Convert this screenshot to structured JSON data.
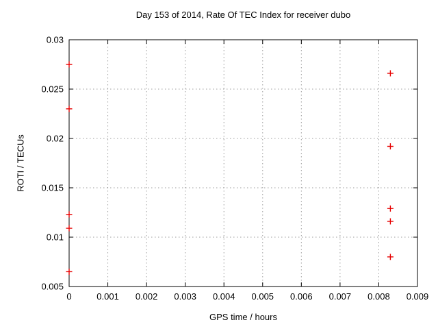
{
  "chart_data": {
    "type": "scatter",
    "title": "Day 153 of 2014, Rate Of TEC Index for receiver dubo",
    "xlabel": "GPS time / hours",
    "ylabel": "ROTI / TECUs",
    "xlim": [
      0,
      0.009
    ],
    "ylim": [
      0.005,
      0.03
    ],
    "x_tick_values": [
      0,
      0.001,
      0.002,
      0.003,
      0.004,
      0.005,
      0.006,
      0.007,
      0.008,
      0.009
    ],
    "x_tick_labels": [
      "0",
      "0.001",
      "0.002",
      "0.003",
      "0.004",
      "0.005",
      "0.006",
      "0.007",
      "0.008",
      "0.009"
    ],
    "y_tick_values": [
      0.005,
      0.01,
      0.015,
      0.02,
      0.025,
      0.03
    ],
    "y_tick_labels": [
      "0.005",
      "0.01",
      "0.015",
      "0.02",
      "0.025",
      "0.03"
    ],
    "grid": "dotted-both-axes",
    "legend_position": "none",
    "series": [
      {
        "name": "ROTI",
        "marker": "plus",
        "color": "#e60000",
        "points": [
          [
            0,
            0.0275
          ],
          [
            0,
            0.023
          ],
          [
            0,
            0.0123
          ],
          [
            0,
            0.0109
          ],
          [
            0,
            0.0065
          ],
          [
            0.0083,
            0.0266
          ],
          [
            0.0083,
            0.0192
          ],
          [
            0.0083,
            0.0129
          ],
          [
            0.0083,
            0.0116
          ],
          [
            0.0083,
            0.008
          ]
        ]
      }
    ]
  },
  "colors": {
    "background": "#ffffff",
    "border": "#000000",
    "grid": "#9c9c9c",
    "marker": "#e60000",
    "text": "#000000"
  }
}
